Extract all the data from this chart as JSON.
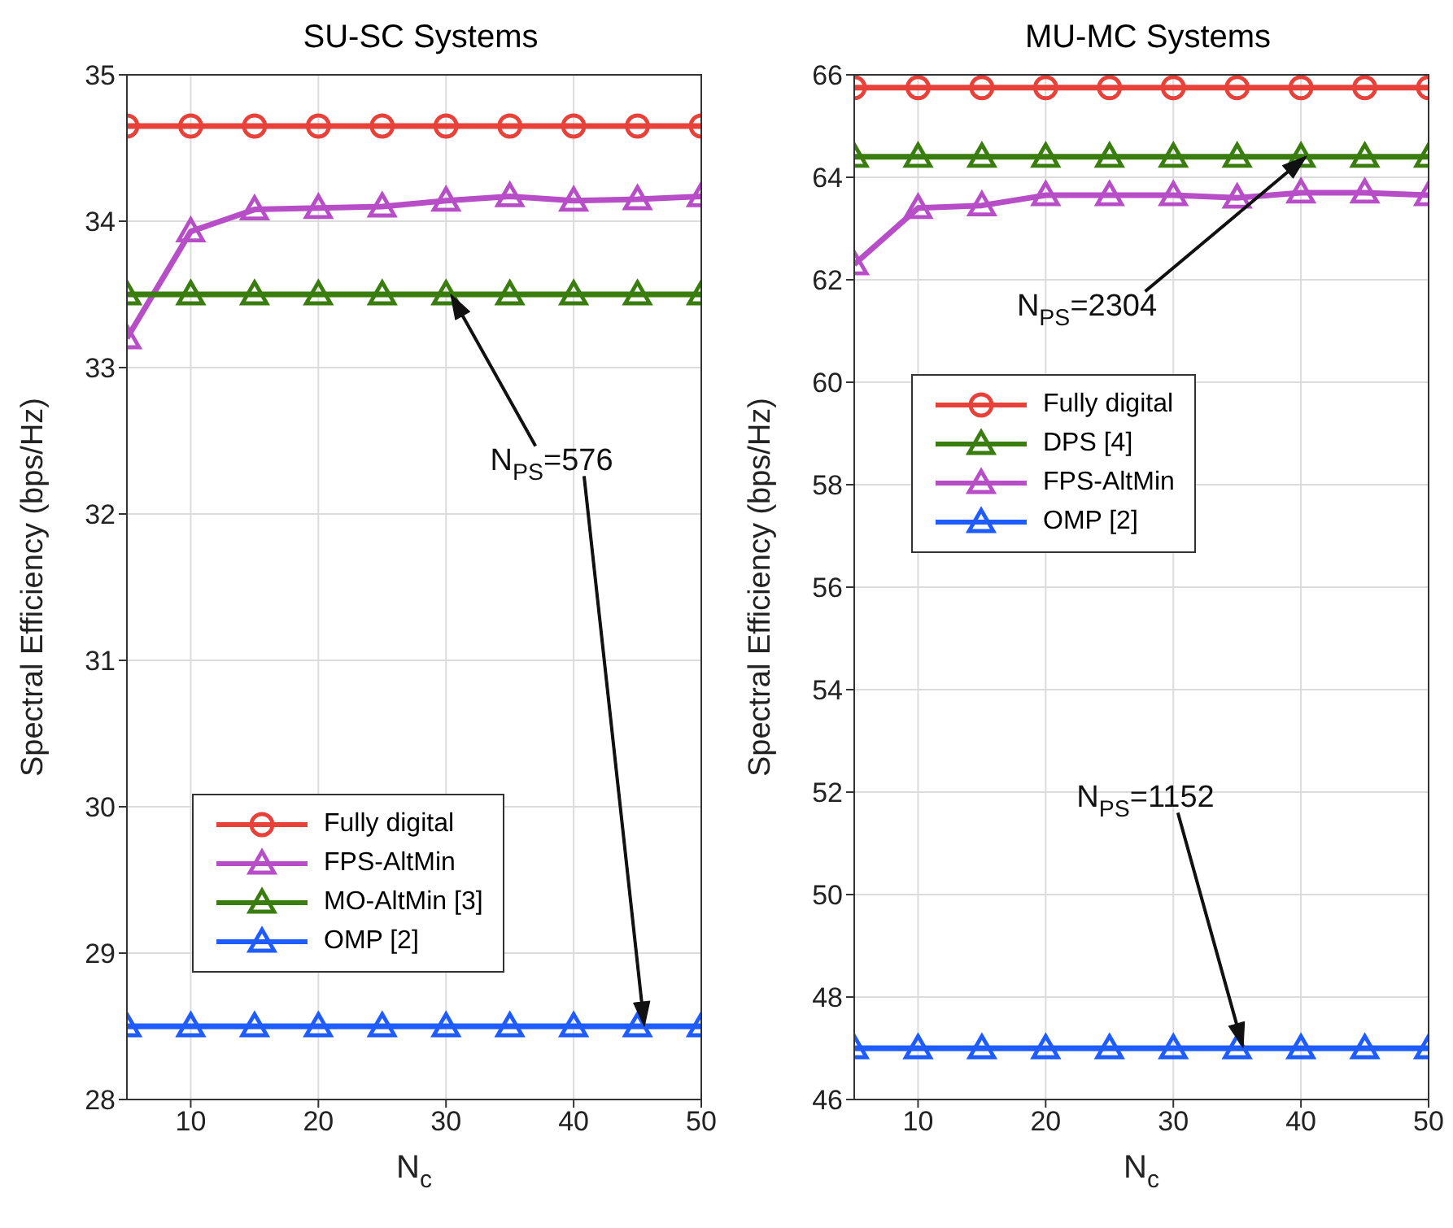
{
  "chart_data": [
    {
      "type": "line",
      "title": "SU-SC Systems",
      "xlabel": "N$_{c}$",
      "ylabel": "Spectral Efficiency (bps/Hz)",
      "x": [
        5,
        10,
        15,
        20,
        25,
        30,
        35,
        40,
        45,
        50
      ],
      "xlim": [
        5,
        50
      ],
      "xticks": [
        10,
        20,
        30,
        40,
        50
      ],
      "ylim": [
        28,
        35
      ],
      "yticks": [
        28,
        29,
        30,
        31,
        32,
        33,
        34,
        35
      ],
      "grid": true,
      "legend": "bottom left",
      "line_style": "solid",
      "series": [
        {
          "name": "Fully digital",
          "color": "#e8413a",
          "marker": "circle",
          "values": [
            34.65,
            34.65,
            34.65,
            34.65,
            34.65,
            34.65,
            34.65,
            34.65,
            34.65,
            34.65
          ]
        },
        {
          "name": "FPS-AltMin",
          "color": "#b74ec8",
          "marker": "triangle",
          "values": [
            33.2,
            33.93,
            34.08,
            34.09,
            34.1,
            34.14,
            34.17,
            34.14,
            34.15,
            34.17
          ]
        },
        {
          "name": "MO-AltMin [3]",
          "color": "#3a7d0f",
          "marker": "triangle",
          "values": [
            33.5,
            33.5,
            33.5,
            33.5,
            33.5,
            33.5,
            33.5,
            33.5,
            33.5,
            33.5
          ]
        },
        {
          "name": "OMP [2]",
          "color": "#1f5cff",
          "marker": "triangle",
          "values": [
            28.5,
            28.5,
            28.5,
            28.5,
            28.5,
            28.5,
            28.5,
            28.5,
            28.5,
            28.5
          ]
        }
      ],
      "annotations": [
        "N$_{PS}$=576"
      ]
    },
    {
      "type": "line",
      "title": "MU-MC Systems",
      "xlabel": "N$_{c}$",
      "ylabel": "Spectral Efficiency (bps/Hz)",
      "x": [
        5,
        10,
        15,
        20,
        25,
        30,
        35,
        40,
        45,
        50
      ],
      "xlim": [
        5,
        50
      ],
      "xticks": [
        10,
        20,
        30,
        40,
        50
      ],
      "ylim": [
        46,
        66
      ],
      "yticks": [
        46,
        48,
        50,
        52,
        54,
        56,
        58,
        60,
        62,
        64,
        66
      ],
      "grid": true,
      "legend": "top left",
      "line_style": "solid",
      "series": [
        {
          "name": "Fully digital",
          "color": "#e8413a",
          "marker": "circle",
          "values": [
            65.75,
            65.75,
            65.75,
            65.75,
            65.75,
            65.75,
            65.75,
            65.75,
            65.75,
            65.75
          ]
        },
        {
          "name": "DPS [4]",
          "color": "#3a7d0f",
          "marker": "triangle",
          "values": [
            64.4,
            64.4,
            64.4,
            64.4,
            64.4,
            64.4,
            64.4,
            64.4,
            64.4,
            64.4
          ]
        },
        {
          "name": "FPS-AltMin",
          "color": "#b74ec8",
          "marker": "triangle",
          "values": [
            62.3,
            63.4,
            63.45,
            63.65,
            63.65,
            63.65,
            63.6,
            63.7,
            63.7,
            63.65
          ]
        },
        {
          "name": "OMP [2]",
          "color": "#1f5cff",
          "marker": "triangle",
          "values": [
            47,
            47,
            47,
            47,
            47,
            47,
            47,
            47,
            47,
            47
          ]
        }
      ],
      "annotations": [
        "N$_{PS}$=2304",
        "N$_{PS}$=1152"
      ]
    }
  ]
}
